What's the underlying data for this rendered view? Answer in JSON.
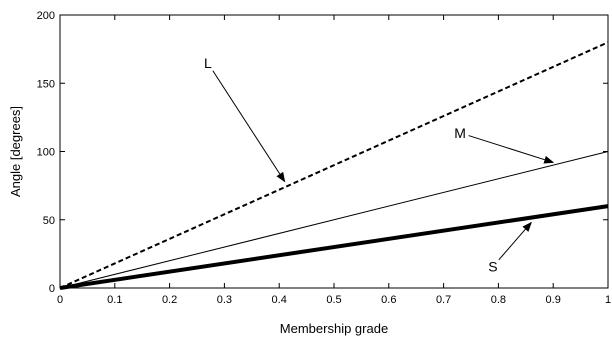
{
  "chart_data": {
    "type": "line",
    "title": "",
    "xlabel": "Membership grade",
    "ylabel": "Angle [degrees]",
    "xlim": [
      0,
      1
    ],
    "ylim": [
      0,
      200
    ],
    "xticks": [
      0,
      0.1,
      0.2,
      0.3,
      0.4,
      0.5,
      0.6,
      0.7,
      0.8,
      0.9,
      1
    ],
    "xtick_labels": [
      "0",
      "0.1",
      "0.2",
      "0.3",
      "0.4",
      "0.5",
      "0.6",
      "0.7",
      "0.8",
      "0.9",
      "1"
    ],
    "yticks": [
      0,
      50,
      100,
      150,
      200
    ],
    "ytick_labels": [
      "0",
      "50",
      "100",
      "150",
      "200"
    ],
    "grid": false,
    "legend": "none",
    "series": [
      {
        "name": "L",
        "style": "dashed",
        "color": "#000000",
        "x": [
          0,
          1
        ],
        "y": [
          0,
          180
        ]
      },
      {
        "name": "M",
        "style": "thin",
        "color": "#000000",
        "x": [
          0,
          1
        ],
        "y": [
          0,
          100
        ]
      },
      {
        "name": "S",
        "style": "thick",
        "color": "#000000",
        "x": [
          0,
          1
        ],
        "y": [
          0,
          60
        ]
      }
    ],
    "annotations": [
      {
        "text": "L",
        "label_at": [
          0.27,
          161
        ],
        "arrow_to": [
          0.41,
          78
        ]
      },
      {
        "text": "M",
        "label_at": [
          0.73,
          110
        ],
        "arrow_to": [
          0.9,
          92
        ]
      },
      {
        "text": "S",
        "label_at": [
          0.79,
          12
        ],
        "arrow_to": [
          0.86,
          48
        ]
      }
    ]
  }
}
